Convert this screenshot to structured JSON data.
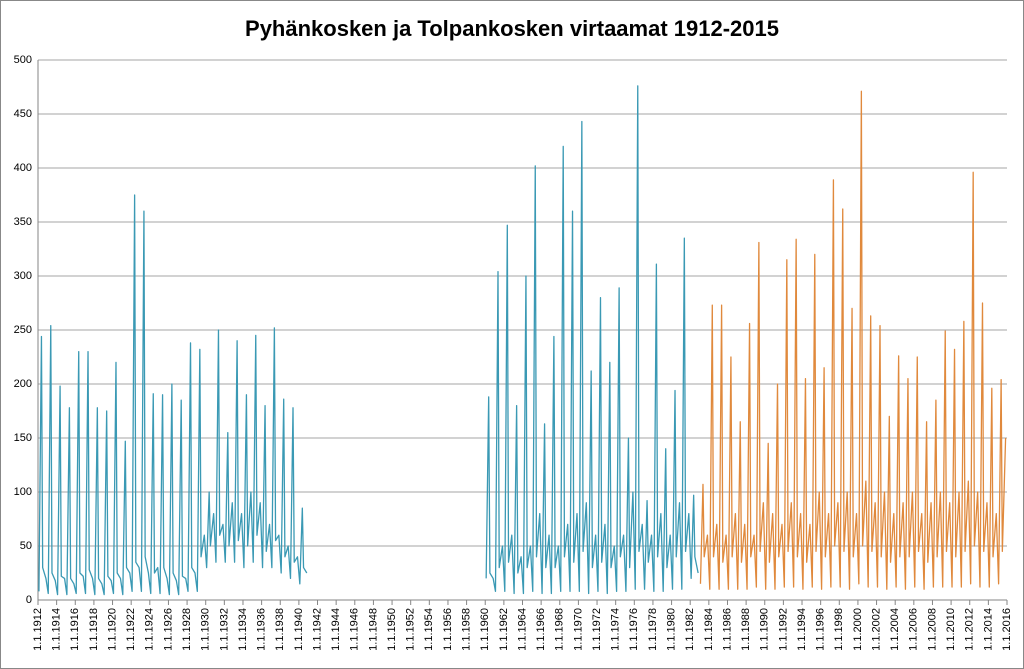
{
  "chart_data": {
    "type": "line",
    "title": "Pyhänkosken ja Tolpankosken virtaamat 1912-2015",
    "xlim": [
      1912,
      2016
    ],
    "ylim": [
      0,
      500
    ],
    "yticks": [
      0,
      50,
      100,
      150,
      200,
      250,
      300,
      350,
      400,
      450,
      500
    ],
    "grid": true,
    "xticks": [
      {
        "value": 1912,
        "label": "1.1.1912"
      },
      {
        "value": 1914,
        "label": "1.1.1914"
      },
      {
        "value": 1916,
        "label": "1.1.1916"
      },
      {
        "value": 1918,
        "label": "1.1.1918"
      },
      {
        "value": 1920,
        "label": "1.1.1920"
      },
      {
        "value": 1922,
        "label": "1.1.1922"
      },
      {
        "value": 1924,
        "label": "1.1.1924"
      },
      {
        "value": 1926,
        "label": "1.1.1926"
      },
      {
        "value": 1928,
        "label": "1.1.1928"
      },
      {
        "value": 1930,
        "label": "1.1.1930"
      },
      {
        "value": 1932,
        "label": "1.1.1932"
      },
      {
        "value": 1934,
        "label": "1.1.1934"
      },
      {
        "value": 1936,
        "label": "1.1.1936"
      },
      {
        "value": 1938,
        "label": "1.1.1938"
      },
      {
        "value": 1940,
        "label": "1.1.1940"
      },
      {
        "value": 1942,
        "label": "1.1.1942"
      },
      {
        "value": 1944,
        "label": "1.1.1944"
      },
      {
        "value": 1946,
        "label": "1.1.1946"
      },
      {
        "value": 1948,
        "label": "1.1.1948"
      },
      {
        "value": 1950,
        "label": "1.1.1950"
      },
      {
        "value": 1952,
        "label": "1.1.1952"
      },
      {
        "value": 1954,
        "label": "1.1.1954"
      },
      {
        "value": 1956,
        "label": "1.1.1956"
      },
      {
        "value": 1958,
        "label": "1.1.1958"
      },
      {
        "value": 1960,
        "label": "1.1.1960"
      },
      {
        "value": 1962,
        "label": "1.1.1962"
      },
      {
        "value": 1964,
        "label": "1.1.1964"
      },
      {
        "value": 1966,
        "label": "1.1.1966"
      },
      {
        "value": 1968,
        "label": "1.1.1968"
      },
      {
        "value": 1970,
        "label": "1.1.1970"
      },
      {
        "value": 1972,
        "label": "1.1.1972"
      },
      {
        "value": 1974,
        "label": "1.1.1974"
      },
      {
        "value": 1976,
        "label": "1.1.1976"
      },
      {
        "value": 1978,
        "label": "1.1.1978"
      },
      {
        "value": 1980,
        "label": "1.1.1980"
      },
      {
        "value": 1982,
        "label": "1.1.1982"
      },
      {
        "value": 1984,
        "label": "1.1.1984"
      },
      {
        "value": 1986,
        "label": "1.1.1986"
      },
      {
        "value": 1988,
        "label": "1.1.1988"
      },
      {
        "value": 1990,
        "label": "1.1.1990"
      },
      {
        "value": 1992,
        "label": "1.1.1992"
      },
      {
        "value": 1994,
        "label": "1.1.1994"
      },
      {
        "value": 1996,
        "label": "1.1.1996"
      },
      {
        "value": 1998,
        "label": "1.1.1998"
      },
      {
        "value": 2000,
        "label": "1.1.2000"
      },
      {
        "value": 2002,
        "label": "1.1.2002"
      },
      {
        "value": 2004,
        "label": "1.1.2004"
      },
      {
        "value": 2006,
        "label": "1.1.2006"
      },
      {
        "value": 2008,
        "label": "1.1.2008"
      },
      {
        "value": 2010,
        "label": "1.1.2010"
      },
      {
        "value": 2012,
        "label": "1.1.2012"
      },
      {
        "value": 2014,
        "label": "1.1.2014"
      },
      {
        "value": 2016,
        "label": "1.1.2016"
      }
    ],
    "series": [
      {
        "color": "#3a99b4",
        "x": [
          1912.1,
          1912.37,
          1912.5,
          1912.85,
          1913.1,
          1913.37,
          1913.5,
          1913.85,
          1914.1,
          1914.37,
          1914.5,
          1914.85,
          1915.1,
          1915.37,
          1915.5,
          1915.85,
          1916.1,
          1916.37,
          1916.5,
          1916.85,
          1917.1,
          1917.37,
          1917.5,
          1917.85,
          1918.1,
          1918.37,
          1918.5,
          1918.85,
          1919.1,
          1919.37,
          1919.5,
          1919.85,
          1920.1,
          1920.37,
          1920.5,
          1920.85,
          1921.1,
          1921.37,
          1921.5,
          1921.85,
          1922.1,
          1922.37,
          1922.5,
          1922.85,
          1923.1,
          1923.37,
          1923.5,
          1923.85,
          1924.1,
          1924.37,
          1924.5,
          1924.85,
          1925.1,
          1925.37,
          1925.5,
          1925.85,
          1926.1,
          1926.37,
          1926.5,
          1926.85,
          1927.1,
          1927.37,
          1927.5,
          1927.85,
          1928.1,
          1928.37,
          1928.5,
          1928.85,
          1929.1,
          1929.37,
          1929.5,
          1929.85,
          1930.1,
          1930.37,
          1930.5,
          1930.85,
          1931.1,
          1931.37,
          1931.5,
          1931.85,
          1932.1,
          1932.37,
          1932.5,
          1932.85,
          1933.1,
          1933.37,
          1933.5,
          1933.85,
          1934.1,
          1934.37,
          1934.5,
          1934.85,
          1935.1,
          1935.37,
          1935.5,
          1935.85,
          1936.1,
          1936.37,
          1936.5,
          1936.85,
          1937.1,
          1937.37,
          1937.5,
          1937.85,
          1938.1,
          1938.37,
          1938.5,
          1938.85,
          1939.1,
          1939.37,
          1939.5,
          1939.85,
          1940.1,
          1940.37,
          1940.5,
          1940.85,
          1950,
          1960.1,
          1960.37,
          1960.5,
          1960.85,
          1961.1,
          1961.37,
          1961.5,
          1961.85,
          1962.1,
          1962.37,
          1962.5,
          1962.85,
          1963.1,
          1963.37,
          1963.5,
          1963.85,
          1964.1,
          1964.37,
          1964.5,
          1964.85,
          1965.1,
          1965.37,
          1965.5,
          1965.85,
          1966.1,
          1966.37,
          1966.5,
          1966.85,
          1967.1,
          1967.37,
          1967.5,
          1967.85,
          1968.1,
          1968.37,
          1968.5,
          1968.85,
          1969.1,
          1969.37,
          1969.5,
          1969.85,
          1970.1,
          1970.37,
          1970.5,
          1970.85,
          1971.1,
          1971.37,
          1971.5,
          1971.85,
          1972.1,
          1972.37,
          1972.5,
          1972.85,
          1973.1,
          1973.37,
          1973.5,
          1973.85,
          1974.1,
          1974.37,
          1974.5,
          1974.85,
          1975.1,
          1975.37,
          1975.5,
          1975.85,
          1976.1,
          1976.37,
          1976.5,
          1976.85,
          1977.1,
          1977.37,
          1977.5,
          1977.85,
          1978.1,
          1978.37,
          1978.5,
          1978.85,
          1979.1,
          1979.37,
          1979.5,
          1979.85,
          1980.1,
          1980.37,
          1980.5,
          1980.85,
          1981.1,
          1981.37,
          1981.5,
          1981.85,
          1982.1,
          1982.37,
          1982.5,
          1982.85
        ],
        "values": [
          8,
          244,
          30,
          20,
          6,
          254,
          25,
          18,
          5,
          198,
          22,
          20,
          5,
          178,
          20,
          15,
          6,
          230,
          25,
          22,
          6,
          230,
          28,
          20,
          5,
          178,
          20,
          15,
          5,
          175,
          22,
          18,
          6,
          220,
          25,
          20,
          5,
          147,
          30,
          25,
          8,
          375,
          35,
          30,
          8,
          360,
          40,
          25,
          6,
          191,
          25,
          30,
          6,
          190,
          30,
          20,
          5,
          200,
          25,
          18,
          5,
          185,
          22,
          20,
          8,
          238,
          30,
          25,
          8,
          232,
          40,
          60,
          30,
          100,
          50,
          80,
          35,
          250,
          60,
          70,
          35,
          155,
          50,
          90,
          35,
          240,
          55,
          80,
          30,
          190,
          50,
          100,
          35,
          245,
          60,
          90,
          30,
          180,
          45,
          70,
          30,
          252,
          55,
          60,
          25,
          186,
          40,
          50,
          20,
          178,
          35,
          40,
          15,
          85,
          30,
          25,
          null,
          20,
          188,
          25,
          20,
          8,
          304,
          30,
          50,
          8,
          347,
          35,
          60,
          6,
          180,
          25,
          40,
          6,
          300,
          30,
          50,
          8,
          402,
          40,
          80,
          6,
          163,
          30,
          60,
          6,
          244,
          30,
          50,
          8,
          420,
          40,
          70,
          8,
          360,
          35,
          80,
          8,
          443,
          45,
          90,
          6,
          212,
          30,
          60,
          8,
          280,
          35,
          70,
          6,
          220,
          30,
          50,
          8,
          289,
          40,
          60,
          8,
          150,
          30,
          100,
          10,
          476,
          45,
          70,
          10,
          92,
          35,
          60,
          8,
          311,
          40,
          80,
          8,
          140,
          30,
          60,
          10,
          194,
          40,
          90,
          10,
          335,
          45,
          80,
          20,
          97,
          40,
          25
        ]
      },
      {
        "color": "#e0893c",
        "x": [
          1983.1,
          1983.37,
          1983.5,
          1983.85,
          1984.1,
          1984.37,
          1984.5,
          1984.85,
          1985.1,
          1985.37,
          1985.5,
          1985.85,
          1986.1,
          1986.37,
          1986.5,
          1986.85,
          1987.1,
          1987.37,
          1987.5,
          1987.85,
          1988.1,
          1988.37,
          1988.5,
          1988.85,
          1989.1,
          1989.37,
          1989.5,
          1989.85,
          1990.1,
          1990.37,
          1990.5,
          1990.85,
          1991.1,
          1991.37,
          1991.5,
          1991.85,
          1992.1,
          1992.37,
          1992.5,
          1992.85,
          1993.1,
          1993.37,
          1993.5,
          1993.85,
          1994.1,
          1994.37,
          1994.5,
          1994.85,
          1995.1,
          1995.37,
          1995.5,
          1995.85,
          1996.1,
          1996.37,
          1996.5,
          1996.85,
          1997.1,
          1997.37,
          1997.5,
          1997.85,
          1998.1,
          1998.37,
          1998.5,
          1998.85,
          1999.1,
          1999.37,
          1999.5,
          1999.85,
          2000.1,
          2000.37,
          2000.5,
          2000.85,
          2001.1,
          2001.37,
          2001.5,
          2001.85,
          2002.1,
          2002.37,
          2002.5,
          2002.85,
          2003.1,
          2003.37,
          2003.5,
          2003.85,
          2004.1,
          2004.37,
          2004.5,
          2004.85,
          2005.1,
          2005.37,
          2005.5,
          2005.85,
          2006.1,
          2006.37,
          2006.5,
          2006.85,
          2007.1,
          2007.37,
          2007.5,
          2007.85,
          2008.1,
          2008.37,
          2008.5,
          2008.85,
          2009.1,
          2009.37,
          2009.5,
          2009.85,
          2010.1,
          2010.37,
          2010.5,
          2010.85,
          2011.1,
          2011.37,
          2011.5,
          2011.85,
          2012.1,
          2012.37,
          2012.5,
          2012.85,
          2013.1,
          2013.37,
          2013.5,
          2013.85,
          2014.1,
          2014.37,
          2014.5,
          2014.85,
          2015.1,
          2015.37,
          2015.5,
          2015.85
        ],
        "values": [
          15,
          107,
          40,
          60,
          10,
          273,
          40,
          70,
          10,
          273,
          35,
          60,
          10,
          225,
          40,
          80,
          10,
          165,
          35,
          70,
          10,
          256,
          40,
          60,
          12,
          331,
          45,
          90,
          10,
          145,
          35,
          80,
          10,
          200,
          40,
          70,
          12,
          315,
          45,
          90,
          12,
          334,
          40,
          80,
          10,
          205,
          35,
          70,
          12,
          320,
          45,
          100,
          10,
          215,
          40,
          80,
          12,
          389,
          50,
          90,
          12,
          362,
          45,
          100,
          10,
          270,
          40,
          80,
          15,
          471,
          50,
          110,
          12,
          263,
          45,
          90,
          12,
          254,
          40,
          100,
          10,
          170,
          35,
          80,
          12,
          226,
          40,
          90,
          10,
          205,
          40,
          100,
          12,
          225,
          45,
          80,
          10,
          165,
          35,
          90,
          12,
          185,
          40,
          100,
          12,
          249,
          45,
          90,
          12,
          232,
          40,
          100,
          12,
          258,
          45,
          110,
          15,
          396,
          50,
          100,
          12,
          275,
          45,
          90,
          12,
          196,
          40,
          80,
          15,
          204,
          45,
          150
        ]
      }
    ]
  }
}
